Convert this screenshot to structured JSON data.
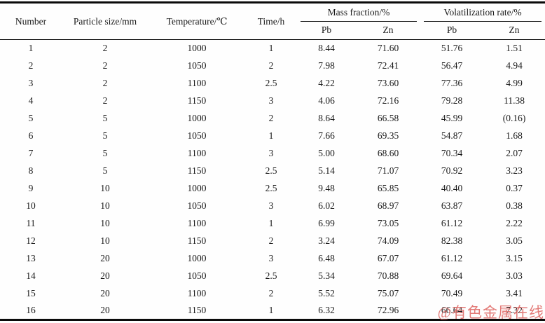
{
  "table": {
    "headers": {
      "number": "Number",
      "particle_size": "Particle size/mm",
      "temperature": "Temperature/℃",
      "time": "Time/h",
      "mass_fraction_group": "Mass fraction/%",
      "volatilization_rate_group": "Volatilization rate/%",
      "sub": [
        "Pb",
        "Zn",
        "Pb",
        "Zn"
      ]
    },
    "rows": [
      [
        "1",
        "2",
        "1000",
        "1",
        "8.44",
        "71.60",
        "51.76",
        "1.51"
      ],
      [
        "2",
        "2",
        "1050",
        "2",
        "7.98",
        "72.41",
        "56.47",
        "4.94"
      ],
      [
        "3",
        "2",
        "1100",
        "2.5",
        "4.22",
        "73.60",
        "77.36",
        "4.99"
      ],
      [
        "4",
        "2",
        "1150",
        "3",
        "4.06",
        "72.16",
        "79.28",
        "11.38"
      ],
      [
        "5",
        "5",
        "1000",
        "2",
        "8.64",
        "66.58",
        "45.99",
        "(0.16)"
      ],
      [
        "6",
        "5",
        "1050",
        "1",
        "7.66",
        "69.35",
        "54.87",
        "1.68"
      ],
      [
        "7",
        "5",
        "1100",
        "3",
        "5.00",
        "68.60",
        "70.34",
        "2.07"
      ],
      [
        "8",
        "5",
        "1150",
        "2.5",
        "5.14",
        "71.07",
        "70.92",
        "3.23"
      ],
      [
        "9",
        "10",
        "1000",
        "2.5",
        "9.48",
        "65.85",
        "40.40",
        "0.37"
      ],
      [
        "10",
        "10",
        "1050",
        "3",
        "6.02",
        "68.97",
        "63.87",
        "0.38"
      ],
      [
        "11",
        "10",
        "1100",
        "1",
        "6.99",
        "73.05",
        "61.12",
        "2.22"
      ],
      [
        "12",
        "10",
        "1150",
        "2",
        "3.24",
        "74.09",
        "82.38",
        "3.05"
      ],
      [
        "13",
        "20",
        "1000",
        "3",
        "6.48",
        "67.07",
        "61.12",
        "3.15"
      ],
      [
        "14",
        "20",
        "1050",
        "2.5",
        "5.34",
        "70.88",
        "69.64",
        "3.03"
      ],
      [
        "15",
        "20",
        "1100",
        "2",
        "5.52",
        "75.07",
        "70.49",
        "3.41"
      ],
      [
        "16",
        "20",
        "1150",
        "1",
        "6.32",
        "72.96",
        "66.64",
        "7.32"
      ]
    ]
  },
  "watermark": {
    "text": "@有色金属在线",
    "color": "#e06a66"
  }
}
